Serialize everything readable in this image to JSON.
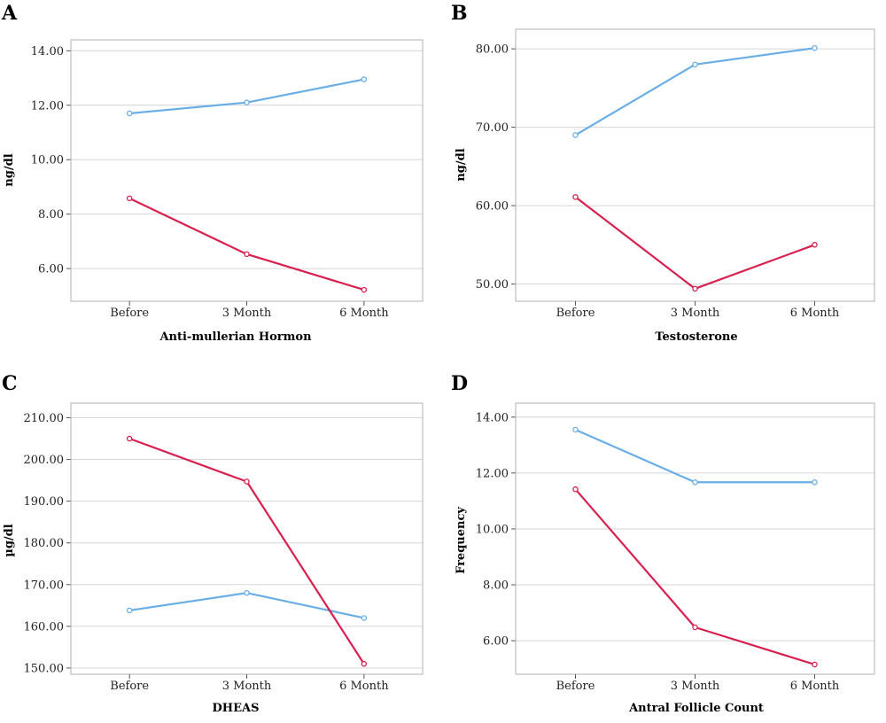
{
  "chart_data": [
    {
      "type": "line",
      "panel": "A",
      "categories": [
        "Before",
        "3 Month",
        "6 Month"
      ],
      "xlabel": "Anti-mullerian Hormon",
      "ylabel": "ng/dl",
      "ylim": [
        4.8,
        14.4
      ],
      "yticks": [
        6.0,
        8.0,
        10.0,
        12.0,
        14.0
      ],
      "grid": true,
      "series": [
        {
          "color": "#6aaee6",
          "values": [
            11.7,
            12.1,
            12.95
          ]
        },
        {
          "color": "#d8214f",
          "values": [
            8.58,
            6.53,
            5.22
          ]
        }
      ]
    },
    {
      "type": "line",
      "panel": "B",
      "categories": [
        "Before",
        "3 Month",
        "6 Month"
      ],
      "xlabel": "Testosterone",
      "ylabel": "ng/dl",
      "ylim": [
        47.8,
        82.5
      ],
      "yticks": [
        50.0,
        60.0,
        70.0,
        80.0
      ],
      "grid": true,
      "series": [
        {
          "color": "#6aaee6",
          "values": [
            69.0,
            78.0,
            80.1
          ]
        },
        {
          "color": "#d8214f",
          "values": [
            61.1,
            49.4,
            55.0
          ]
        }
      ]
    },
    {
      "type": "line",
      "panel": "C",
      "categories": [
        "Before",
        "3 Month",
        "6 Month"
      ],
      "xlabel": "DHEAS",
      "ylabel": "µg/dl",
      "ylim": [
        148.5,
        213.5
      ],
      "yticks": [
        150.0,
        160.0,
        170.0,
        180.0,
        190.0,
        200.0,
        210.0
      ],
      "grid": true,
      "series": [
        {
          "color": "#6aaee6",
          "values": [
            163.8,
            168.0,
            162.0
          ]
        },
        {
          "color": "#d8214f",
          "values": [
            205.0,
            194.7,
            151.0
          ]
        }
      ]
    },
    {
      "type": "line",
      "panel": "D",
      "categories": [
        "Before",
        "3 Month",
        "6 Month"
      ],
      "xlabel": "Antral Follicle Count",
      "ylabel": "Frequency",
      "ylim": [
        4.8,
        14.5
      ],
      "yticks": [
        6.0,
        8.0,
        10.0,
        12.0,
        14.0
      ],
      "grid": true,
      "series": [
        {
          "color": "#6aaee6",
          "values": [
            13.55,
            11.67,
            11.67
          ]
        },
        {
          "color": "#d8214f",
          "values": [
            11.42,
            6.48,
            5.15
          ]
        }
      ]
    }
  ]
}
